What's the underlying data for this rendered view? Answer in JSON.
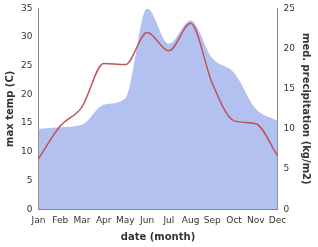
{
  "chart_data": {
    "type": "line",
    "categories": [
      "Jan",
      "Feb",
      "Mar",
      "Apr",
      "May",
      "Jun",
      "Jul",
      "Aug",
      "Sep",
      "Oct",
      "Nov",
      "Dec"
    ],
    "x_label": "date (month)",
    "y_label": "max temp (C)",
    "y2_label": "med. precipitation (kg/m2)",
    "ylim": [
      0,
      35
    ],
    "yticks": [
      0,
      5,
      10,
      15,
      20,
      25,
      30,
      35
    ],
    "y2lim": [
      0,
      25
    ],
    "y2ticks": [
      0,
      5,
      10,
      15,
      20,
      25
    ],
    "grid": false,
    "series": [
      {
        "type": "line",
        "color": "#c0535a",
        "axis": "y",
        "values": [
          8.8,
          14.5,
          17.8,
          25.4,
          25.2,
          30.8,
          27.6,
          32.4,
          21.9,
          15.4,
          14.9,
          9.3
        ]
      },
      {
        "type": "area",
        "color": "#b3c1f0",
        "axis": "y2",
        "values": [
          10,
          10.2,
          10.5,
          13,
          13.8,
          25,
          20.6,
          23.5,
          18.8,
          17,
          12.5,
          11
        ]
      }
    ]
  }
}
